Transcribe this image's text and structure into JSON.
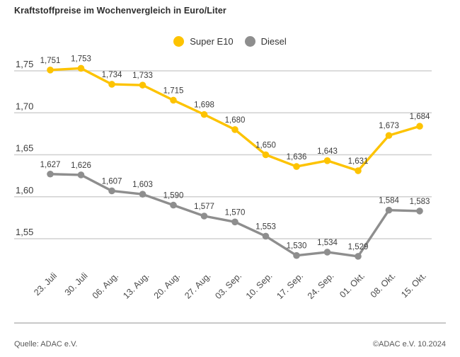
{
  "header": {
    "title": "Kraftstoffpreise im Wochenvergleich in Euro/Liter"
  },
  "legend": {
    "items": [
      {
        "label": "Super E10",
        "color": "#FDC300"
      },
      {
        "label": "Diesel",
        "color": "#8E8E8E"
      }
    ]
  },
  "footer": {
    "source": "Quelle: ADAC e.V.",
    "copyright": "©ADAC e.V. 10.2024"
  },
  "colors": {
    "gridline": "#d0d0d0",
    "value_label": "#3c3c3c",
    "ytick_label": "#3c3c3c",
    "xtick_label": "#4a4a4a"
  },
  "chart_data": {
    "type": "line",
    "title": "Kraftstoffpreise im Wochenvergleich in Euro/Liter",
    "unit": "Euro/Liter",
    "grid": true,
    "legend_position": "top-center",
    "categories": [
      "23. Juli",
      "30. Juli",
      "06. Aug.",
      "13. Aug.",
      "20. Aug.",
      "27. Aug.",
      "03. Sep.",
      "10. Sep.",
      "17. Sep.",
      "24. Sep.",
      "01. Okt.",
      "08. Okt.",
      "15. Okt."
    ],
    "series": [
      {
        "name": "Super E10",
        "color": "#FDC300",
        "values": [
          1.751,
          1.753,
          1.734,
          1.733,
          1.715,
          1.698,
          1.68,
          1.65,
          1.636,
          1.643,
          1.631,
          1.673,
          1.684
        ],
        "labels": [
          "1,751",
          "1,753",
          "1,734",
          "1,733",
          "1,715",
          "1,698",
          "1,680",
          "1,650",
          "1,636",
          "1,643",
          "1,631",
          "1,673",
          "1,684"
        ]
      },
      {
        "name": "Diesel",
        "color": "#8E8E8E",
        "values": [
          1.627,
          1.626,
          1.607,
          1.603,
          1.59,
          1.577,
          1.57,
          1.553,
          1.53,
          1.534,
          1.529,
          1.584,
          1.583
        ],
        "labels": [
          "1,627",
          "1,626",
          "1,607",
          "1,603",
          "1,590",
          "1,577",
          "1,570",
          "1,553",
          "1,530",
          "1,534",
          "1,529",
          "1,584",
          "1,583"
        ]
      }
    ],
    "yticks": [
      {
        "label": "1,75",
        "value": 1.75
      },
      {
        "label": "1,70",
        "value": 1.7
      },
      {
        "label": "1,65",
        "value": 1.65
      },
      {
        "label": "1,60",
        "value": 1.6
      },
      {
        "label": "1,55",
        "value": 1.55
      }
    ],
    "ylim": [
      1.52,
      1.76
    ]
  }
}
